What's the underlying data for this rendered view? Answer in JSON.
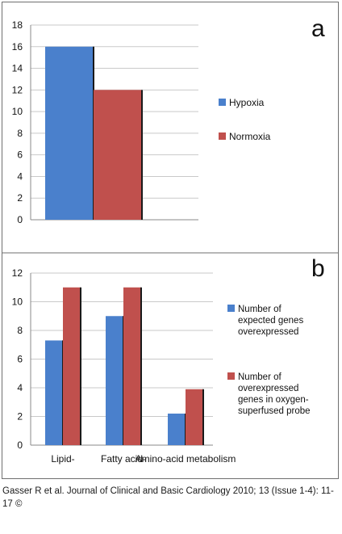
{
  "chart_data": [
    {
      "panel_label": "a",
      "type": "bar",
      "categories": [
        ""
      ],
      "series": [
        {
          "name": "Hypoxia",
          "color": "#4a80cc",
          "values": [
            16
          ]
        },
        {
          "name": "Normoxia",
          "color": "#c0504d",
          "values": [
            12
          ]
        }
      ],
      "ylim": [
        0,
        18
      ],
      "yticks": [
        "0",
        "2",
        "4",
        "6",
        "8",
        "10",
        "12",
        "14",
        "16",
        "18"
      ],
      "grid": true,
      "legend": "right"
    },
    {
      "panel_label": "b",
      "type": "bar",
      "categories": [
        "Lipid-",
        "Fatty acid-",
        "Amino-acid metabolism"
      ],
      "series": [
        {
          "name": "Number of expected genes overexpressed",
          "legend_lines": [
            "Number of",
            "expected genes",
            "overexpressed"
          ],
          "color": "#4a80cc",
          "values": [
            7.3,
            9.0,
            2.2
          ]
        },
        {
          "name": "Number of overexpressed genes in oxygen-superfused probe",
          "legend_lines": [
            "Number of",
            "overexpressed",
            "genes in oxygen-",
            "superfused probe"
          ],
          "color": "#c0504d",
          "values": [
            11,
            11,
            3.9
          ]
        }
      ],
      "ylim": [
        0,
        12
      ],
      "yticks": [
        "0",
        "2",
        "4",
        "6",
        "8",
        "10",
        "12"
      ],
      "grid": true,
      "legend": "right"
    }
  ],
  "caption": "Gasser R et al. Journal of Clinical and Basic Cardiology 2010; 13 (Issue 1-4): 11-17 ©"
}
